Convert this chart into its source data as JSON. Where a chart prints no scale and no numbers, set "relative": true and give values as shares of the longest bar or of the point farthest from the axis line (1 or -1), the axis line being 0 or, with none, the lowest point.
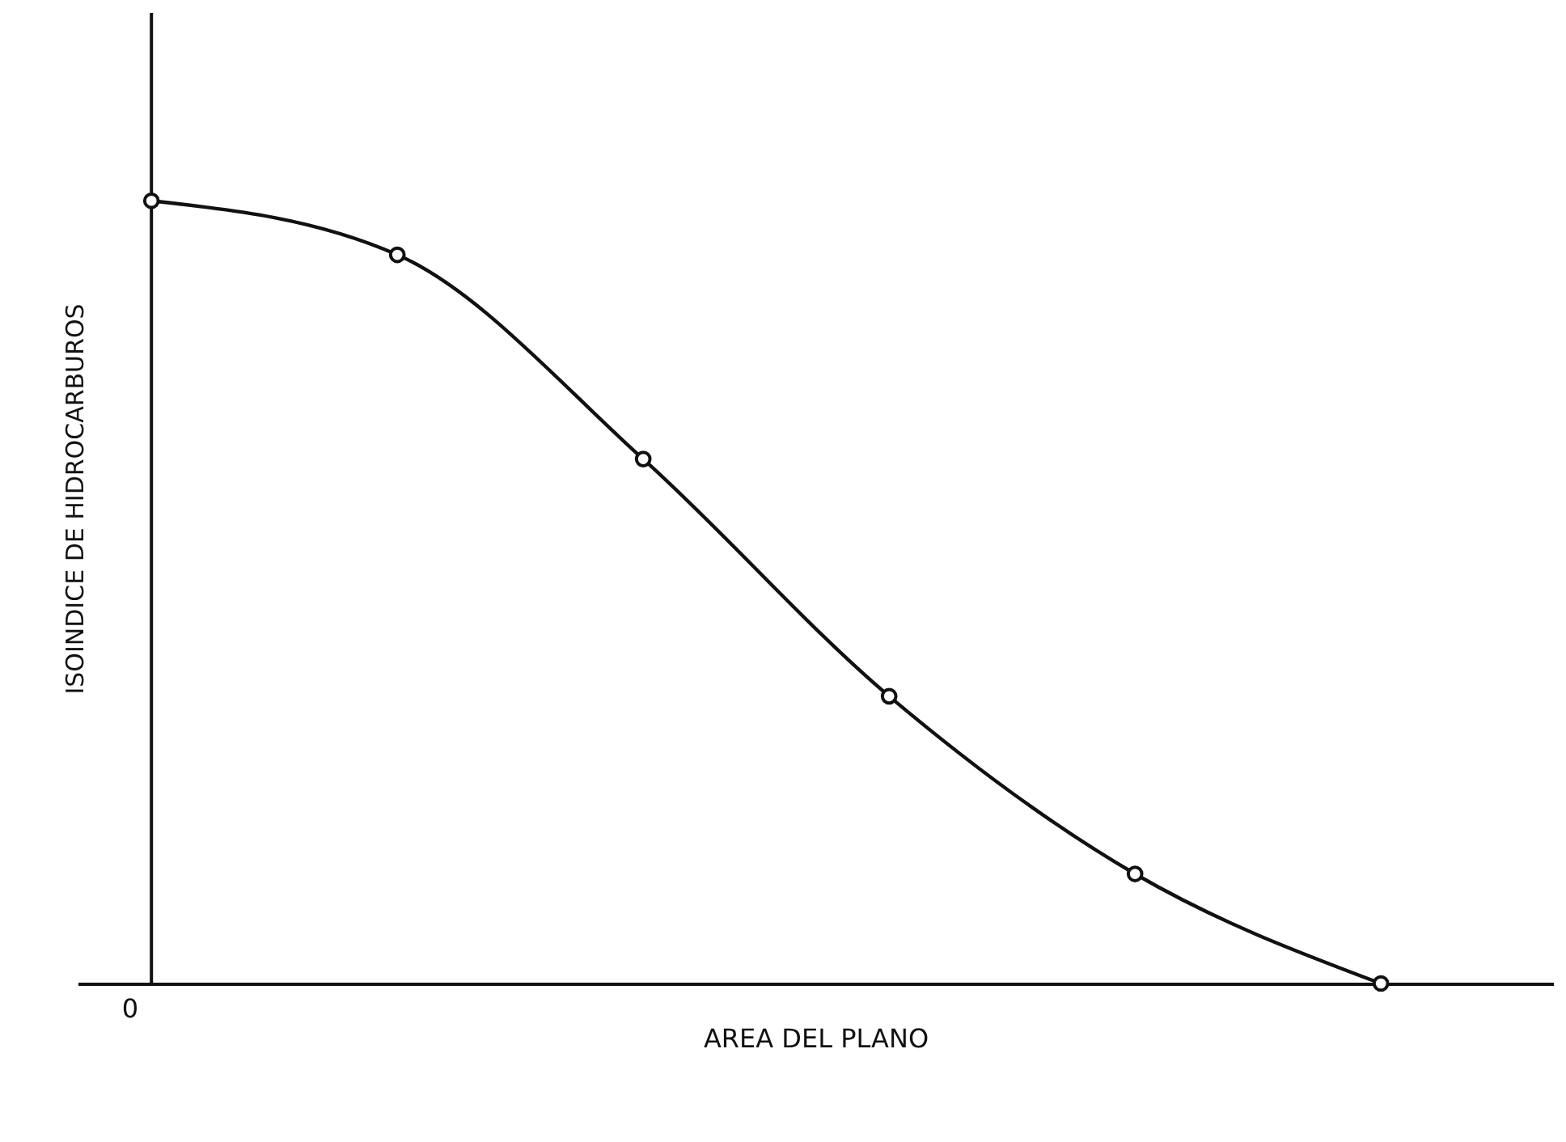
{
  "chart_data": {
    "type": "line",
    "relative": true,
    "xlabel": "AREA DEL PLANO",
    "ylabel": "ISOINDICE DE HIDROCARBUROS",
    "annotations": [
      "0"
    ],
    "categories": [
      null,
      null,
      null,
      null,
      null,
      null
    ],
    "series": [
      {
        "color": "#111111",
        "values": [
          1,
          0.931,
          0.67,
          0.367,
          0.14,
          0
        ]
      }
    ],
    "marker": "circle",
    "line_style": "solid"
  }
}
